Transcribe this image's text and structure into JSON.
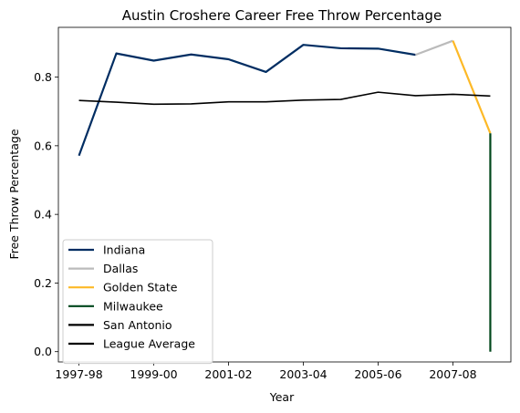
{
  "chart_data": {
    "type": "line",
    "title": "Austin Croshere Career Free Throw Percentage",
    "xlabel": "Year",
    "ylabel": "Free Throw Percentage",
    "x_categories": [
      "1997-98",
      "1998-99",
      "1999-00",
      "2000-01",
      "2001-02",
      "2002-03",
      "2003-04",
      "2004-05",
      "2005-06",
      "2006-07",
      "2007-08",
      "2008-09"
    ],
    "xtick_labels": [
      "1997-98",
      "1999-00",
      "2001-02",
      "2003-04",
      "2005-06",
      "2007-08"
    ],
    "xtick_indices": [
      0,
      2,
      4,
      6,
      8,
      10
    ],
    "ylim": [
      -0.03,
      0.945
    ],
    "yticks": [
      0.0,
      0.2,
      0.4,
      0.6,
      0.8
    ],
    "ytick_labels": [
      "0.0",
      "0.2",
      "0.4",
      "0.6",
      "0.8"
    ],
    "grid": false,
    "legend_position": "lower-left",
    "series": [
      {
        "name": "Indiana",
        "color": "#002D62",
        "points": [
          [
            0,
            0.571
          ],
          [
            1,
            0.869
          ],
          [
            2,
            0.848
          ],
          [
            3,
            0.866
          ],
          [
            4,
            0.852
          ],
          [
            5,
            0.815
          ],
          [
            6,
            0.894
          ],
          [
            7,
            0.884
          ],
          [
            8,
            0.883
          ],
          [
            9,
            0.865
          ]
        ]
      },
      {
        "name": "Dallas",
        "color": "#BBBBBB",
        "points": [
          [
            9,
            0.865
          ],
          [
            10,
            0.906
          ]
        ]
      },
      {
        "name": "Golden State",
        "color": "#FDB927",
        "points": [
          [
            10,
            0.906
          ],
          [
            11,
            0.636
          ]
        ]
      },
      {
        "name": "Milwaukee",
        "color": "#00471B",
        "points": [
          [
            11,
            0.636
          ],
          [
            11,
            0.0
          ]
        ]
      },
      {
        "name": "San Antonio",
        "color": "#000000",
        "points": []
      },
      {
        "name": "League Average",
        "color": "#000000",
        "points": [
          [
            0,
            0.732
          ],
          [
            1,
            0.727
          ],
          [
            2,
            0.721
          ],
          [
            3,
            0.722
          ],
          [
            4,
            0.728
          ],
          [
            5,
            0.728
          ],
          [
            6,
            0.733
          ],
          [
            7,
            0.735
          ],
          [
            8,
            0.756
          ],
          [
            9,
            0.746
          ],
          [
            10,
            0.75
          ],
          [
            11,
            0.745
          ]
        ]
      }
    ]
  }
}
